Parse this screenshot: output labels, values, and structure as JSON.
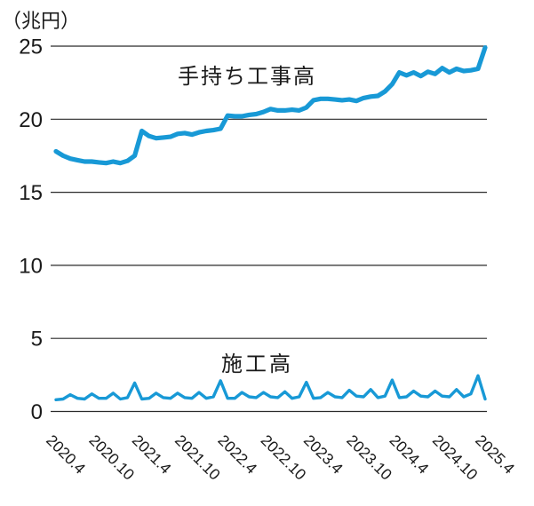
{
  "chart_data": {
    "type": "line",
    "title": "",
    "unit_label": "（兆円）",
    "xlabel": "",
    "ylabel": "兆円",
    "ylim": [
      0,
      25
    ],
    "grid": "horizontal-only",
    "legend_position": "inline-annotations",
    "line_color": "#1899d6",
    "grid_color": "#2a2a2a",
    "text_color": "#1a1a1a",
    "yticks": [
      0,
      5,
      10,
      15,
      20,
      25
    ],
    "xtick_labels": [
      "2020.4",
      "2020.10",
      "2021.4",
      "2021.10",
      "2022.4",
      "2022.10",
      "2023.4",
      "2023.10",
      "2024.4",
      "2024.10",
      "2025.4"
    ],
    "xtick_indices": [
      0,
      6,
      12,
      18,
      24,
      30,
      36,
      42,
      48,
      54,
      60
    ],
    "x": [
      "2020.4",
      "2020.5",
      "2020.6",
      "2020.7",
      "2020.8",
      "2020.9",
      "2020.10",
      "2020.11",
      "2020.12",
      "2021.1",
      "2021.2",
      "2021.3",
      "2021.4",
      "2021.5",
      "2021.6",
      "2021.7",
      "2021.8",
      "2021.9",
      "2021.10",
      "2021.11",
      "2021.12",
      "2022.1",
      "2022.2",
      "2022.3",
      "2022.4",
      "2022.5",
      "2022.6",
      "2022.7",
      "2022.8",
      "2022.9",
      "2022.10",
      "2022.11",
      "2022.12",
      "2023.1",
      "2023.2",
      "2023.3",
      "2023.4",
      "2023.5",
      "2023.6",
      "2023.7",
      "2023.8",
      "2023.9",
      "2023.10",
      "2023.11",
      "2023.12",
      "2024.1",
      "2024.2",
      "2024.3",
      "2024.4",
      "2024.5",
      "2024.6",
      "2024.7",
      "2024.8",
      "2024.9",
      "2024.10",
      "2024.11",
      "2024.12",
      "2025.1",
      "2025.2",
      "2025.3",
      "2025.4"
    ],
    "series": [
      {
        "name": "手持ち工事高",
        "stroke_width": 5.2,
        "values": [
          17.8,
          17.5,
          17.3,
          17.2,
          17.1,
          17.1,
          17.05,
          17.0,
          17.1,
          17.0,
          17.15,
          17.5,
          19.2,
          18.85,
          18.7,
          18.75,
          18.8,
          19.0,
          19.05,
          18.95,
          19.1,
          19.2,
          19.25,
          19.35,
          20.25,
          20.2,
          20.2,
          20.3,
          20.35,
          20.5,
          20.7,
          20.6,
          20.6,
          20.65,
          20.6,
          20.8,
          21.3,
          21.4,
          21.4,
          21.35,
          21.3,
          21.35,
          21.25,
          21.45,
          21.55,
          21.6,
          21.9,
          22.4,
          23.2,
          23.0,
          23.2,
          22.95,
          23.25,
          23.1,
          23.5,
          23.2,
          23.45,
          23.3,
          23.35,
          23.45,
          24.9
        ]
      },
      {
        "name": "施工高",
        "stroke_width": 3.4,
        "values": [
          0.8,
          0.85,
          1.15,
          0.9,
          0.85,
          1.2,
          0.9,
          0.9,
          1.25,
          0.85,
          0.95,
          1.95,
          0.85,
          0.9,
          1.25,
          0.95,
          0.9,
          1.25,
          0.95,
          0.9,
          1.3,
          0.9,
          1.0,
          2.1,
          0.9,
          0.9,
          1.3,
          1.0,
          0.95,
          1.3,
          1.0,
          0.95,
          1.35,
          0.9,
          1.0,
          2.0,
          0.9,
          0.95,
          1.3,
          1.0,
          0.95,
          1.45,
          1.05,
          1.0,
          1.5,
          0.95,
          1.05,
          2.15,
          0.95,
          1.0,
          1.4,
          1.05,
          1.0,
          1.4,
          1.05,
          1.0,
          1.5,
          1.0,
          1.2,
          2.45,
          0.85
        ]
      }
    ]
  }
}
